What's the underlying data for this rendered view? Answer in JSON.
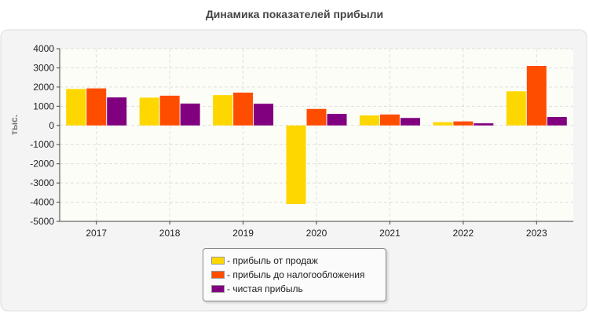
{
  "chart_data": {
    "type": "bar",
    "title": "Динамика показателей прибыли",
    "ylabel": "тыс.",
    "xlabel": "",
    "categories": [
      "2017",
      "2018",
      "2019",
      "2020",
      "2021",
      "2022",
      "2023"
    ],
    "ylim": [
      -5000,
      4000
    ],
    "yticks": [
      4000,
      3000,
      2000,
      1000,
      0,
      -1000,
      -2000,
      -3000,
      -4000,
      -5000
    ],
    "grid": true,
    "legend_position": "bottom-center",
    "series": [
      {
        "name": "- прибыль от продаж",
        "color": "#ffd700",
        "values": [
          1900,
          1450,
          1580,
          -4100,
          520,
          170,
          1780
        ]
      },
      {
        "name": "- прибыль до налогообложения",
        "color": "#ff4d00",
        "values": [
          1930,
          1550,
          1710,
          860,
          570,
          210,
          3100
        ]
      },
      {
        "name": "- чистая прибыль",
        "color": "#800080",
        "values": [
          1460,
          1140,
          1130,
          600,
          390,
          110,
          440
        ]
      }
    ]
  }
}
